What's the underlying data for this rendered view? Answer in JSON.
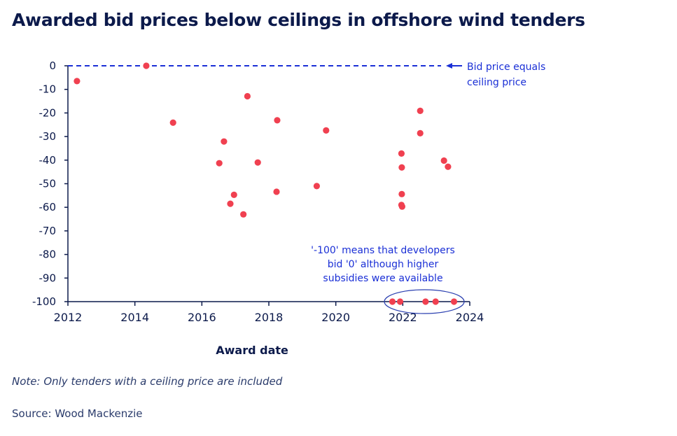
{
  "title": "Awarded bid prices below ceilings in offshore wind tenders",
  "note": "Note: Only tenders with a ceiling price are included",
  "source": "Source: Wood Mackenzie",
  "colors": {
    "points": "#f04050",
    "annotation": "#1a2fd6",
    "axis": "#0c1a4b"
  },
  "chart_data": {
    "type": "scatter",
    "title": "Awarded bid prices below ceilings in offshore wind tenders",
    "xlabel": "Award date",
    "ylabel": "",
    "xlim": [
      2012,
      2024
    ],
    "ylim": [
      -100,
      0
    ],
    "xticks": [
      "2012",
      "2014",
      "2016",
      "2018",
      "2020",
      "2022",
      "2024"
    ],
    "yticks": [
      "0",
      "-10",
      "-20",
      "-30",
      "-40",
      "-50",
      "-60",
      "-70",
      "-80",
      "-90",
      "-100"
    ],
    "grid": false,
    "reference_line": {
      "y": 0,
      "style": "dashed",
      "label": "Bid price equals ceiling price",
      "label_lines": [
        "Bid price equals",
        "ceiling price"
      ]
    },
    "annotation": {
      "lines": [
        "'-100' means that developers",
        "bid '0' although higher",
        "subsidies were available"
      ]
    },
    "points": [
      {
        "x": 2012.27,
        "y": -6.5
      },
      {
        "x": 2014.34,
        "y": 0
      },
      {
        "x": 2015.14,
        "y": -24.1
      },
      {
        "x": 2016.52,
        "y": -41.3
      },
      {
        "x": 2016.66,
        "y": -32.1
      },
      {
        "x": 2016.85,
        "y": -58.5
      },
      {
        "x": 2016.96,
        "y": -54.7
      },
      {
        "x": 2017.24,
        "y": -63.0
      },
      {
        "x": 2017.36,
        "y": -12.9
      },
      {
        "x": 2017.67,
        "y": -41.0
      },
      {
        "x": 2018.23,
        "y": -53.4
      },
      {
        "x": 2018.25,
        "y": -23.1
      },
      {
        "x": 2019.43,
        "y": -51.0
      },
      {
        "x": 2019.71,
        "y": -27.4
      },
      {
        "x": 2021.96,
        "y": -37.2
      },
      {
        "x": 2021.97,
        "y": -43.1
      },
      {
        "x": 2021.97,
        "y": -54.4
      },
      {
        "x": 2021.96,
        "y": -59.0
      },
      {
        "x": 2021.98,
        "y": -59.7
      },
      {
        "x": 2022.52,
        "y": -19.1
      },
      {
        "x": 2022.52,
        "y": -28.6
      },
      {
        "x": 2023.23,
        "y": -40.2
      },
      {
        "x": 2023.35,
        "y": -42.8
      },
      {
        "x": 2021.69,
        "y": -100
      },
      {
        "x": 2021.92,
        "y": -100
      },
      {
        "x": 2022.68,
        "y": -100
      },
      {
        "x": 2022.98,
        "y": -100
      },
      {
        "x": 2023.53,
        "y": -100
      }
    ]
  }
}
